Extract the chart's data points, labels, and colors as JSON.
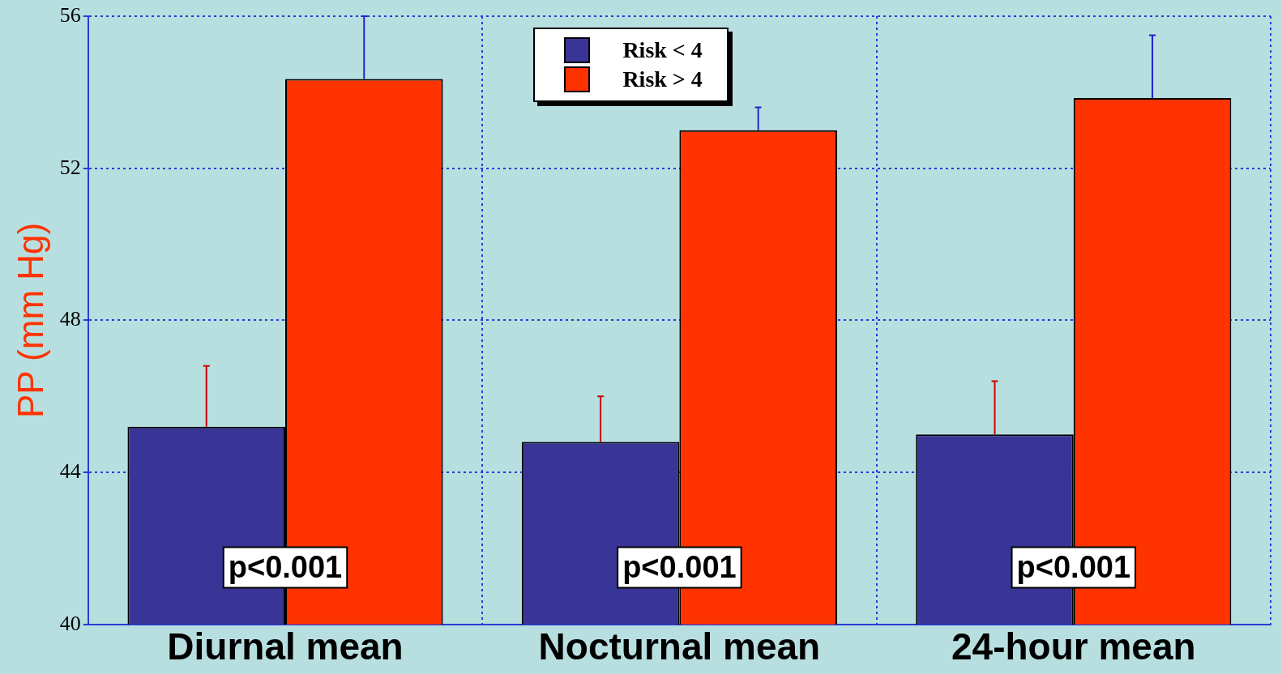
{
  "chart_data": {
    "type": "bar",
    "ylabel": "PP (mm Hg)",
    "categories": [
      "Diurnal mean",
      "Nocturnal mean",
      "24-hour mean"
    ],
    "series": [
      {
        "name": "Risk < 4",
        "color": "#383597",
        "values": [
          45.2,
          44.8,
          45.0
        ],
        "errors": [
          [
            45.2,
            46.8
          ],
          [
            44.8,
            46.0
          ],
          [
            45.0,
            46.4
          ]
        ]
      },
      {
        "name": "Risk > 4",
        "color": "#ff3300",
        "values": [
          54.35,
          53.0,
          53.85
        ],
        "errors": [
          [
            54.35,
            56
          ],
          [
            53.0,
            53.6
          ],
          [
            53.85,
            55.5
          ]
        ]
      }
    ],
    "ylim": [
      40,
      56
    ],
    "yticks": [
      40,
      44,
      48,
      52,
      56
    ],
    "grid": true,
    "legend": "top",
    "annotations": [
      {
        "text": "p<0.001",
        "x": "Diurnal mean",
        "y": 41.5
      },
      {
        "text": "p<0.001",
        "x": "Nocturnal mean",
        "y": 41.5
      },
      {
        "text": "p<0.001",
        "x": "24-hour mean",
        "y": 41.5
      }
    ]
  }
}
